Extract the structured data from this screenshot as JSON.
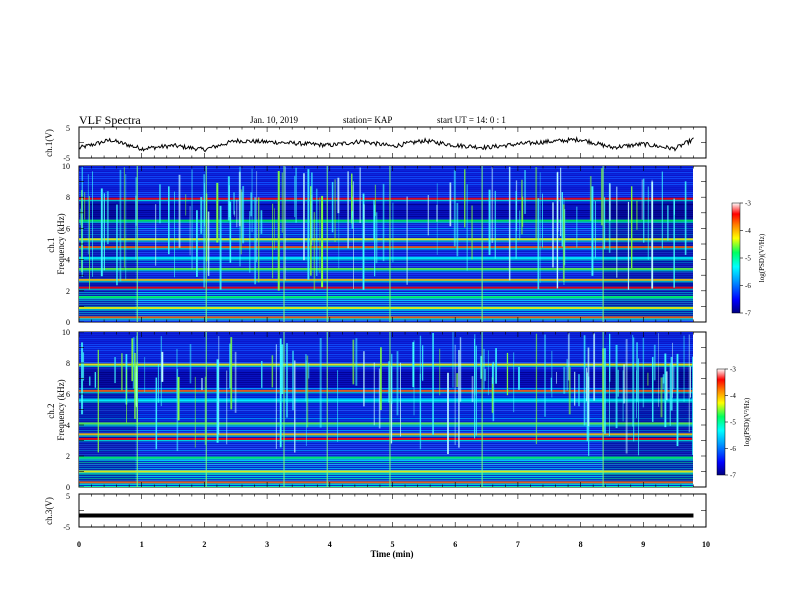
{
  "header": {
    "title": "VLF Spectra",
    "date": "Jan. 10, 2019",
    "station": "station= KAP",
    "start": "start UT =  14: 0  : 1"
  },
  "colorbar": {
    "label": "log(PSD)(V²/Hz)",
    "ticks": [
      "-3",
      "-4",
      "-5",
      "-6",
      "-7"
    ]
  },
  "chart_data": [
    {
      "type": "line",
      "panel": "ch1-waveform",
      "ylabel": "ch.1(V)",
      "ylim": [
        -5,
        5
      ],
      "y_ticks": [
        "5",
        "-5"
      ],
      "xlim": [
        0,
        10
      ],
      "description_values": "noisy waveform oscillating roughly between -3 and 2 V over 0 to 9.8 min",
      "x": [
        0,
        0.5,
        1.0,
        1.5,
        2.0,
        2.5,
        3.0,
        3.5,
        4.0,
        4.5,
        5.0,
        5.5,
        6.0,
        6.5,
        7.0,
        7.5,
        8.0,
        8.5,
        9.0,
        9.5,
        9.8
      ],
      "y": [
        -1.8,
        0.8,
        -2.0,
        -1.0,
        -2.3,
        0.6,
        0.2,
        -0.3,
        -0.9,
        0.4,
        -1.2,
        0.6,
        -0.9,
        -1.6,
        -0.5,
        0.3,
        1.0,
        -1.6,
        -0.5,
        -2.0,
        1.0
      ]
    },
    {
      "type": "heatmap",
      "panel": "ch1-spectrogram",
      "ylabel": "ch.1\nFrequency (kHz)",
      "ylim": [
        0,
        10
      ],
      "y_ticks": [
        "10",
        "8",
        "6",
        "4",
        "2",
        "0"
      ],
      "xlim": [
        0,
        10
      ],
      "band_lines_khz": [
        0.3,
        0.9,
        1.6,
        2.2,
        2.7,
        3.4,
        4.1,
        4.8,
        5.3,
        6.5,
        7.9
      ],
      "colorscale": [
        "#000080",
        "#0000ff",
        "#00a0ff",
        "#00ffff",
        "#00ff80",
        "#ffff00",
        "#ff8000",
        "#ff0000",
        "#ffffff"
      ],
      "clim": [
        -7,
        -3
      ]
    },
    {
      "type": "heatmap",
      "panel": "ch2-spectrogram",
      "ylabel": "ch.2\nFrequency (kHz)",
      "ylim": [
        0,
        10
      ],
      "y_ticks": [
        "10",
        "8",
        "6",
        "4",
        "2",
        "0"
      ],
      "xlim": [
        0,
        10
      ],
      "band_lines_khz": [
        0.3,
        1.0,
        1.9,
        3.1,
        3.4,
        4.1,
        5.6,
        6.2,
        7.9
      ],
      "colorscale": [
        "#000080",
        "#0000ff",
        "#00a0ff",
        "#00ffff",
        "#00ff80",
        "#ffff00",
        "#ff8000",
        "#ff0000",
        "#ffffff"
      ],
      "clim": [
        -7,
        -3
      ]
    },
    {
      "type": "line",
      "panel": "ch3-waveform",
      "ylabel": "ch.3(V)",
      "ylim": [
        -5,
        5
      ],
      "y_ticks": [
        "5",
        "-5"
      ],
      "xlim": [
        0,
        10
      ],
      "x": [
        0,
        9.8
      ],
      "y": [
        -1.5,
        -1.5
      ],
      "xlabel": "Time (min)",
      "x_ticks": [
        "0",
        "1",
        "2",
        "3",
        "4",
        "5",
        "6",
        "7",
        "8",
        "9",
        "10"
      ]
    }
  ]
}
